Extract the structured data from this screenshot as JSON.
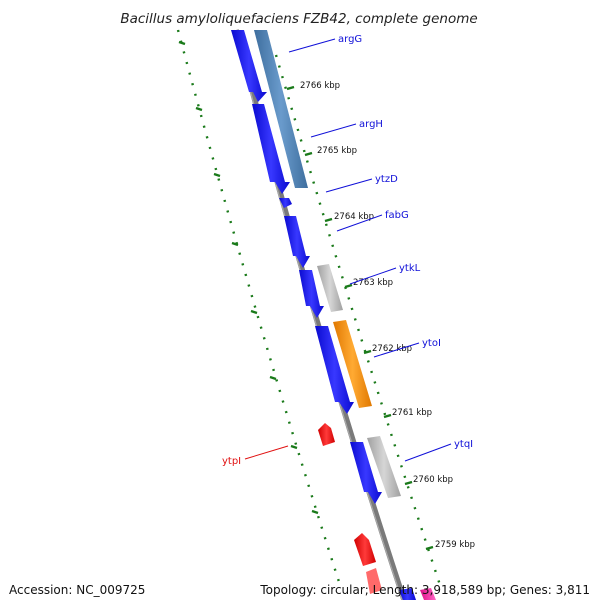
{
  "title": "Bacillus amyloliquefaciens FZB42, complete genome",
  "footer": {
    "accession": "Accession: NC_009725",
    "topology": "Topology: circular; Length: 3,918,589 bp; Genes: 3,811"
  },
  "colors": {
    "backbone": "#8a8a8a",
    "ticks": "#1a7a1a",
    "forward_strand": "#1414f0",
    "reverse_strand": "#f01414",
    "rna": "#4a7fb5",
    "hypothetical": "#b4b4b4",
    "highlight": "#ff8c00",
    "label_line": "#1010d8"
  },
  "kbp_ticks": [
    "2766 kbp",
    "2765 kbp",
    "2764 kbp",
    "2763 kbp",
    "2762 kbp",
    "2761 kbp",
    "2760 kbp",
    "2759 kbp"
  ],
  "genes": [
    {
      "name": "argG",
      "strand": "forward",
      "color": "#4a7fb5"
    },
    {
      "name": "argH",
      "strand": "forward",
      "color": "#4a7fb5"
    },
    {
      "name": "ytzD",
      "strand": "forward",
      "color": "#1414f0"
    },
    {
      "name": "fabG",
      "strand": "forward",
      "color": "#1414f0"
    },
    {
      "name": "ytkL",
      "strand": "forward",
      "color": "#b4b4b4"
    },
    {
      "name": "ytoI",
      "strand": "forward",
      "color": "#ff8c00"
    },
    {
      "name": "ytqI",
      "strand": "forward",
      "color": "#b4b4b4"
    },
    {
      "name": "ytpI",
      "strand": "reverse",
      "color": "#f01414"
    }
  ]
}
